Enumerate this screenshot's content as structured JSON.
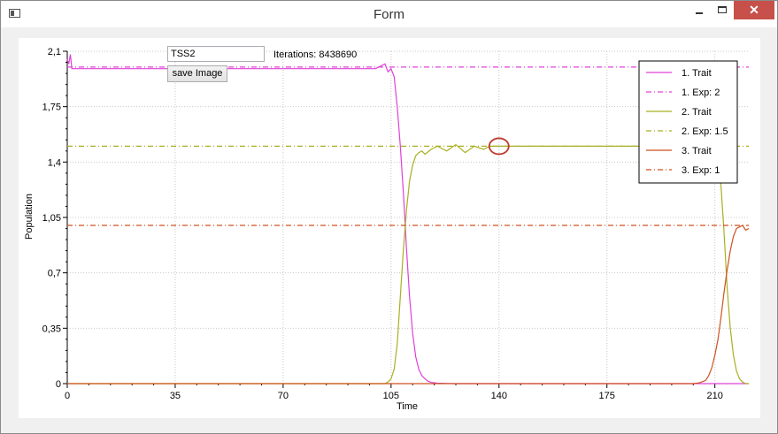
{
  "window": {
    "title": "Form"
  },
  "controls": {
    "tss_value": "TSS2",
    "save_label": "save Image",
    "iterations_text": "Iterations: 8438690"
  },
  "chart_data": {
    "type": "line",
    "xlabel": "Time",
    "ylabel": "Population",
    "xlim": [
      0,
      221
    ],
    "ylim": [
      0,
      2.1
    ],
    "xticks": [
      0,
      35,
      70,
      105,
      140,
      175,
      210
    ],
    "xtick_labels": [
      "0",
      "35",
      "70",
      "105",
      "140",
      "175",
      "210"
    ],
    "yticks": [
      0,
      0.35,
      0.7,
      1.05,
      1.4,
      1.75,
      2.1
    ],
    "ytick_labels": [
      "0",
      "0,35",
      "0,7",
      "1,05",
      "1,4",
      "1,75",
      "2,1"
    ],
    "grid": true,
    "legend_position": "top-right",
    "series": [
      {
        "name": "1. Trait",
        "color": "#e040d8",
        "style": "solid",
        "x": [
          0,
          0.5,
          1,
          1.5,
          3,
          50,
          100,
          103,
          104,
          105,
          106,
          107,
          108,
          109,
          110,
          111,
          112,
          113,
          114,
          115,
          116,
          117,
          118,
          120,
          125,
          130,
          221
        ],
        "y": [
          2.05,
          2.02,
          2.08,
          1.99,
          1.99,
          1.99,
          1.99,
          2.02,
          1.97,
          1.99,
          1.94,
          1.75,
          1.5,
          1.2,
          0.85,
          0.55,
          0.32,
          0.17,
          0.09,
          0.05,
          0.03,
          0.015,
          0.008,
          0.003,
          0,
          0,
          0
        ]
      },
      {
        "name": "1. Exp: 2",
        "color": "#e040d8",
        "style": "dashdot",
        "x": [
          0,
          221
        ],
        "y": [
          2.0,
          2.0
        ]
      },
      {
        "name": "2. Trait",
        "color": "#a8b020",
        "style": "solid",
        "x": [
          0,
          103,
          104,
          105,
          106,
          107,
          108,
          109,
          110,
          111,
          112,
          113,
          114,
          115,
          116,
          118,
          120,
          123,
          126,
          129,
          132,
          135,
          137,
          140,
          150,
          200,
          205,
          207,
          208,
          209,
          210,
          211,
          212,
          213,
          214,
          215,
          216,
          217,
          218,
          219,
          220,
          221
        ],
        "y": [
          0,
          0,
          0.01,
          0.03,
          0.09,
          0.25,
          0.55,
          0.85,
          1.1,
          1.28,
          1.38,
          1.44,
          1.46,
          1.47,
          1.45,
          1.48,
          1.5,
          1.47,
          1.51,
          1.46,
          1.5,
          1.48,
          1.5,
          1.5,
          1.5,
          1.5,
          1.5,
          1.5,
          1.5,
          1.5,
          1.47,
          1.4,
          1.25,
          0.95,
          0.6,
          0.35,
          0.18,
          0.08,
          0.03,
          0.01,
          0,
          0
        ]
      },
      {
        "name": "2. Exp: 1.5",
        "color": "#a8b020",
        "style": "dashdot",
        "x": [
          0,
          221
        ],
        "y": [
          1.5,
          1.5
        ]
      },
      {
        "name": "3. Trait",
        "color": "#d05020",
        "style": "solid",
        "x": [
          0,
          203,
          205,
          207,
          208,
          209,
          210,
          211,
          212,
          213,
          214,
          215,
          216,
          217,
          218,
          219,
          220,
          221
        ],
        "y": [
          0,
          0,
          0.005,
          0.02,
          0.05,
          0.1,
          0.18,
          0.28,
          0.42,
          0.58,
          0.72,
          0.84,
          0.93,
          0.98,
          0.99,
          1.0,
          0.97,
          0.98
        ]
      },
      {
        "name": "3. Exp: 1",
        "color": "#d05020",
        "style": "dashdot",
        "x": [
          0,
          221
        ],
        "y": [
          1.0,
          1.0
        ]
      }
    ],
    "annotations": [
      {
        "type": "circle-marker",
        "x": 140,
        "y": 1.5,
        "color": "#c0392b"
      }
    ]
  }
}
